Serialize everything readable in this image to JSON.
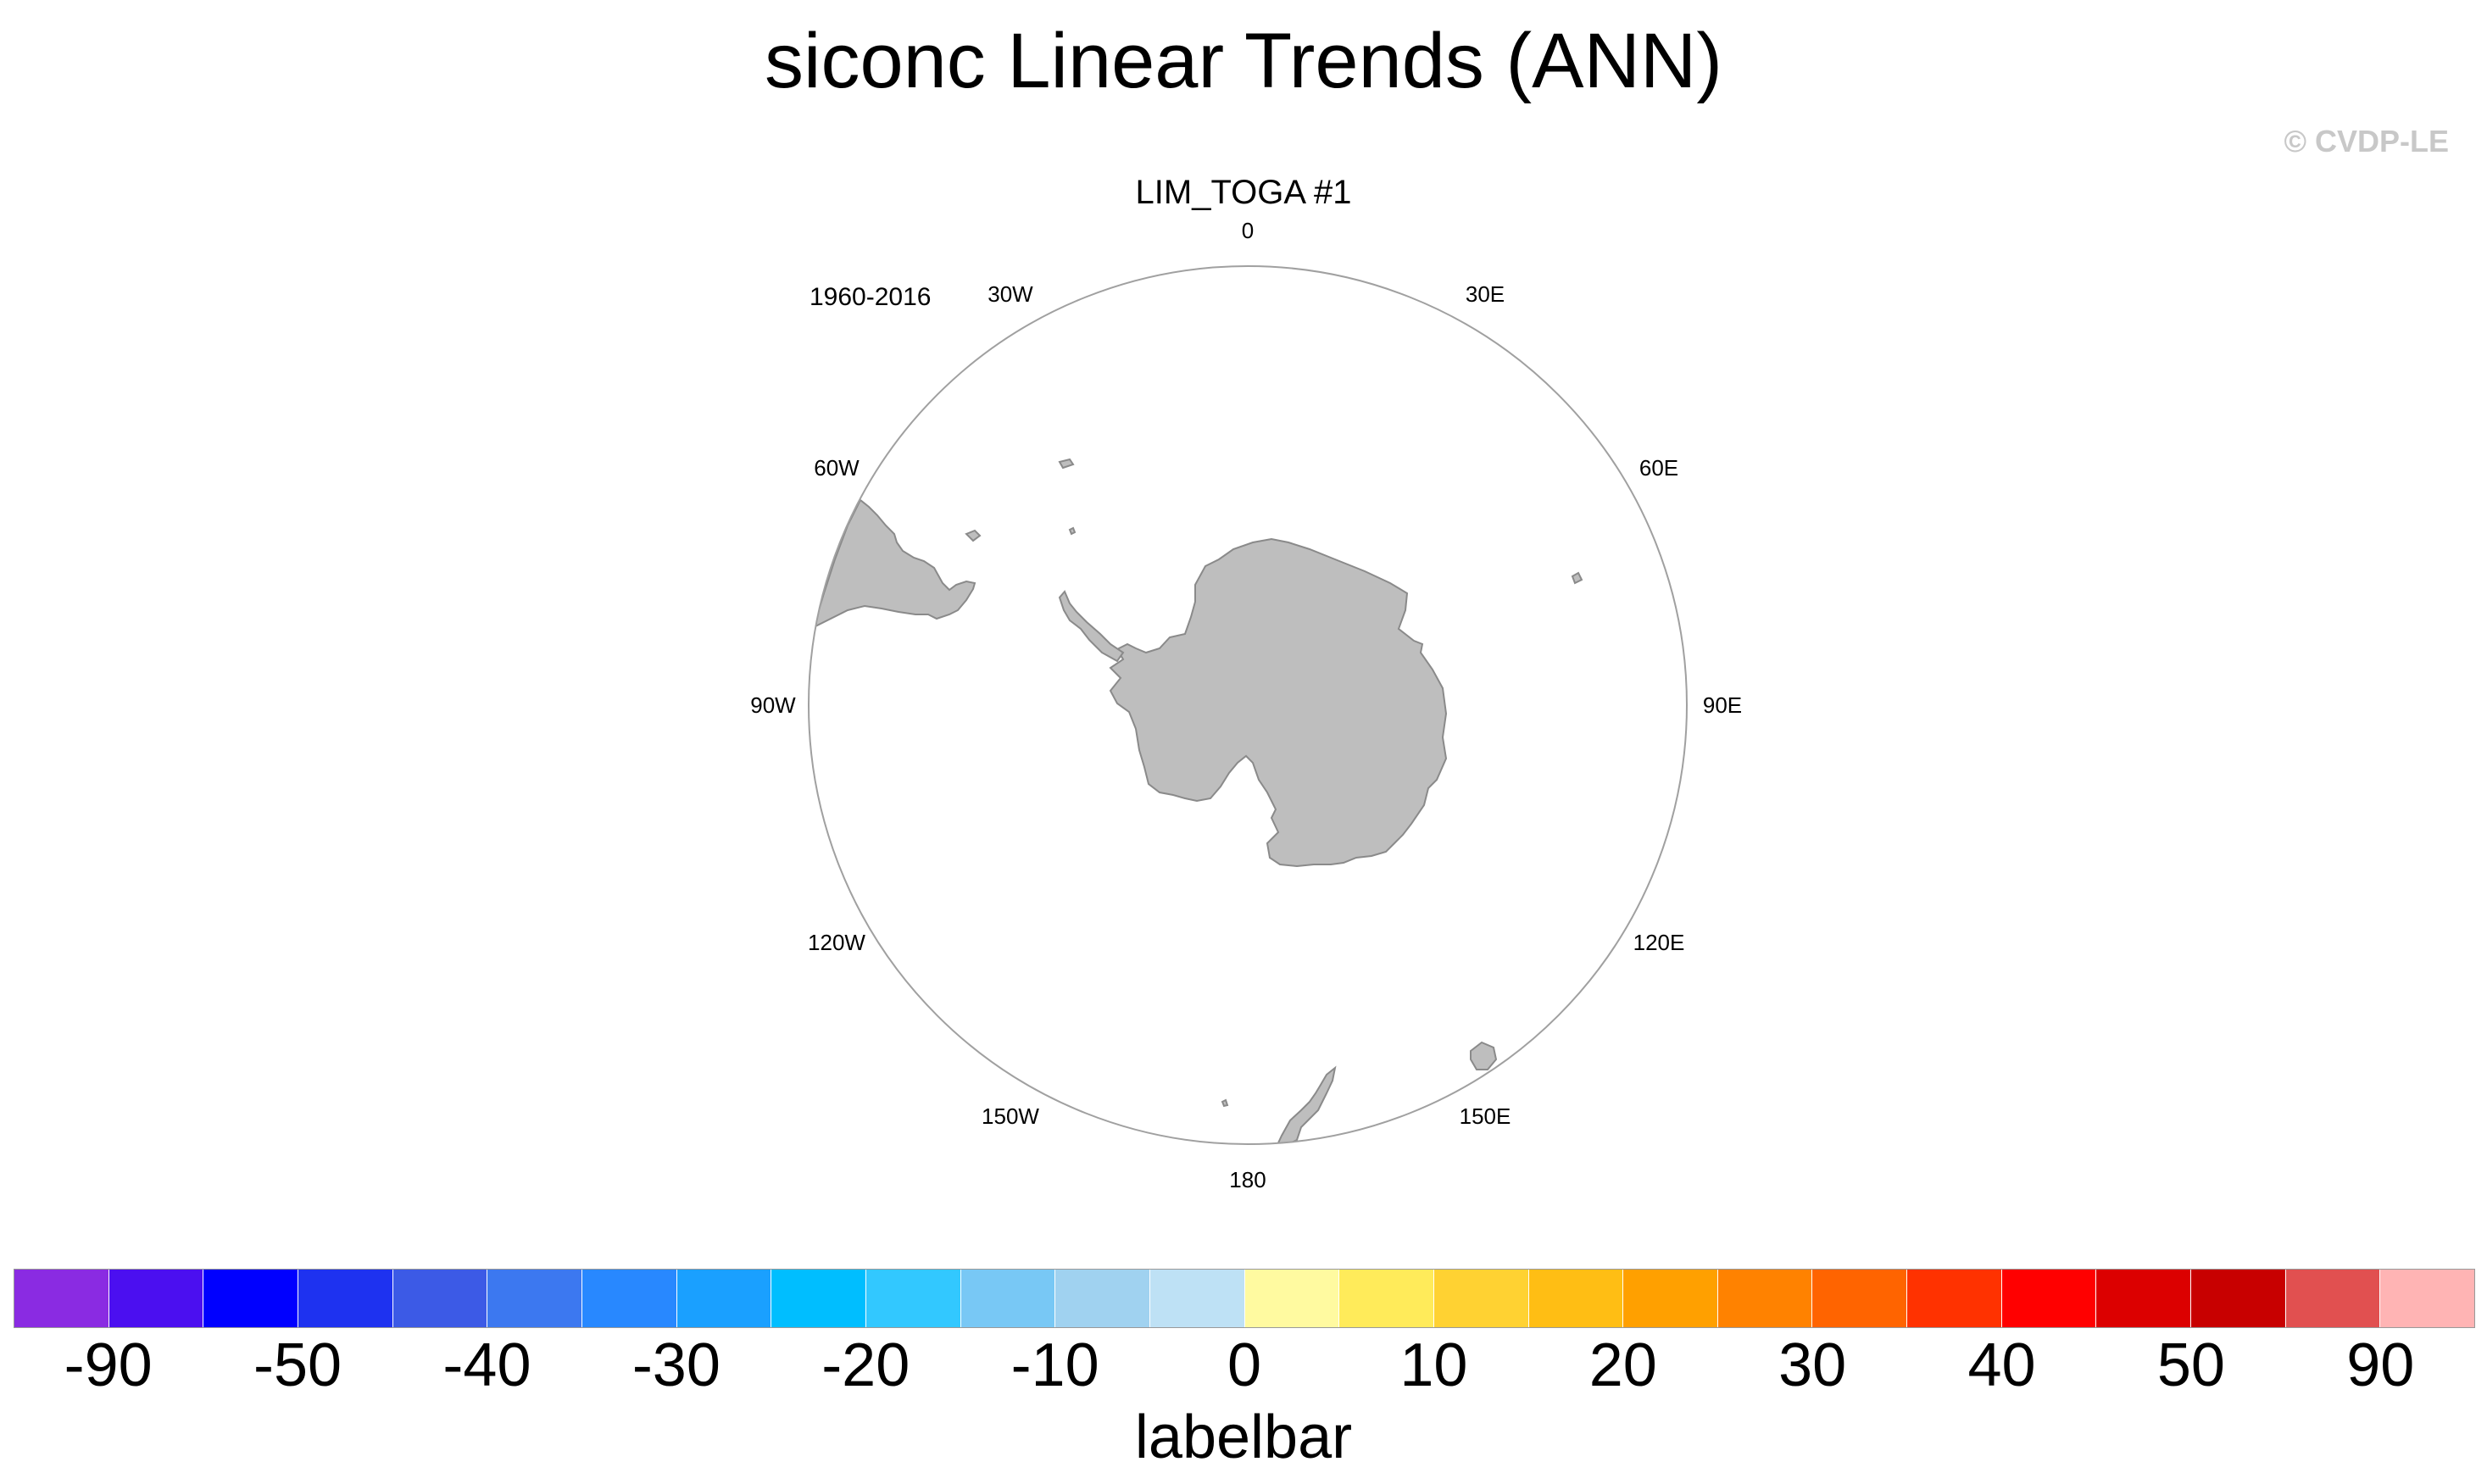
{
  "title": "siconc Linear Trends (ANN)",
  "copyright": "© CVDP-LE",
  "panel": {
    "title": "LIM_TOGA #1",
    "period": "1960-2016",
    "projection": "south-polar-stereographic",
    "land_color": "#bebebe",
    "ocean_color": "#ffffff",
    "longitude_labels": [
      "0",
      "30E",
      "60E",
      "90E",
      "120E",
      "150E",
      "180",
      "150W",
      "120W",
      "90W",
      "60W",
      "30W"
    ]
  },
  "colorbar": {
    "title": "labelbar",
    "colors": [
      "#8a2be2",
      "#4b0ff0",
      "#0000ff",
      "#1e32f0",
      "#3c5ae6",
      "#3c78f0",
      "#2888ff",
      "#1aa0ff",
      "#00beff",
      "#32c8ff",
      "#78c8f5",
      "#a0d2f0",
      "#bee1f5",
      "#fffaa0",
      "#ffeb5a",
      "#ffd232",
      "#ffbe14",
      "#ffa000",
      "#ff8200",
      "#ff6400",
      "#ff3200",
      "#ff0000",
      "#dc0000",
      "#c80000",
      "#e15050",
      "#ffb4b4"
    ],
    "labels": [
      "-90",
      "-50",
      "-40",
      "-30",
      "-20",
      "-10",
      "0",
      "10",
      "20",
      "30",
      "40",
      "50",
      "90"
    ]
  }
}
